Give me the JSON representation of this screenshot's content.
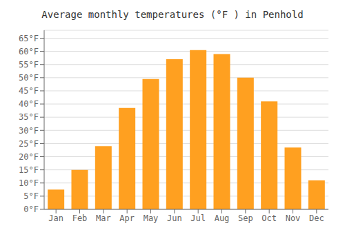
{
  "chart_data": {
    "type": "bar",
    "title": "Average monthly temperatures (°F ) in Penhold",
    "categories": [
      "Jan",
      "Feb",
      "Mar",
      "Apr",
      "May",
      "Jun",
      "Jul",
      "Aug",
      "Sep",
      "Oct",
      "Nov",
      "Dec"
    ],
    "values": [
      7.5,
      15.0,
      24.0,
      38.5,
      49.5,
      57.0,
      60.5,
      59.0,
      50.0,
      41.0,
      23.5,
      11.0
    ],
    "color": "#FFA020",
    "ylim": [
      0,
      68
    ],
    "yticks": [
      {
        "value": 0,
        "label": "0°F"
      },
      {
        "value": 5,
        "label": "5°F"
      },
      {
        "value": 10,
        "label": "10°F"
      },
      {
        "value": 15,
        "label": "15°F"
      },
      {
        "value": 20,
        "label": "20°F"
      },
      {
        "value": 25,
        "label": "25°F"
      },
      {
        "value": 30,
        "label": "30°F"
      },
      {
        "value": 35,
        "label": "35°F"
      },
      {
        "value": 40,
        "label": "40°F"
      },
      {
        "value": 45,
        "label": "45°F"
      },
      {
        "value": 50,
        "label": "50°F"
      },
      {
        "value": 55,
        "label": "55°F"
      },
      {
        "value": 60,
        "label": "60°F"
      },
      {
        "value": 65,
        "label": "65°F"
      }
    ],
    "grid": true
  }
}
